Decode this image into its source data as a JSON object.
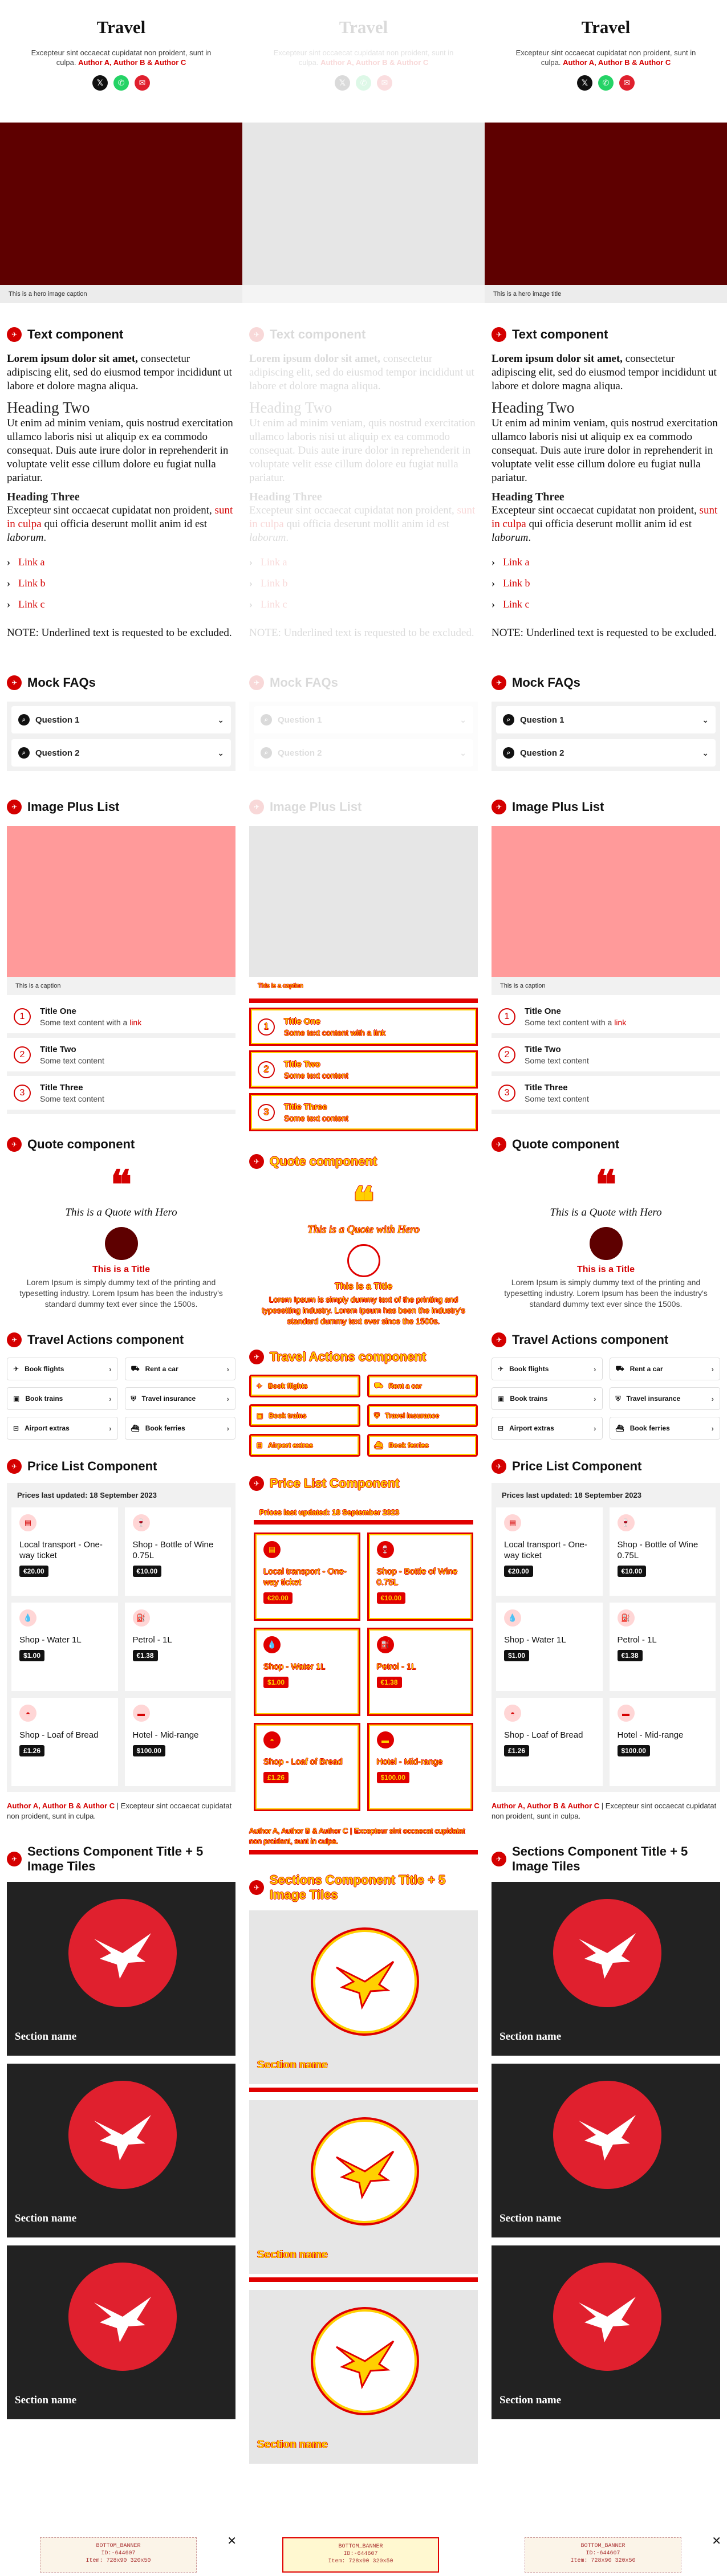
{
  "header": {
    "title": "Travel",
    "subtitle_text": "Excepteur sint occaecat cupidatat non proident, sunt in culpa.",
    "authors": "Author A, Author B & Author C",
    "share": [
      {
        "icon": "x-icon",
        "glyph": "𝕏"
      },
      {
        "icon": "whatsapp-icon",
        "glyph": "✆"
      },
      {
        "icon": "email-icon",
        "glyph": "✉"
      }
    ]
  },
  "hero": {
    "caption": "This is a hero image caption",
    "caption_alt": "This is a hero image title"
  },
  "text_component": {
    "title": "Text component",
    "lead_bold": "Lorem ipsum dolor sit amet,",
    "lead_rest": " consectetur adipiscing elit, sed do eiusmod tempor incididunt ut labore et dolore magna aliqua.",
    "h2": "Heading Two",
    "p2": "Ut enim ad minim veniam, quis nostrud exercitation ullamco laboris nisi ut aliquip ex ea commodo consequat. Duis aute irure dolor in reprehenderit in voluptate velit esse cillum dolore eu fugiat nulla pariatur.",
    "h3": "Heading Three",
    "p3_a": "Excepteur sint occaecat cupidatat non proident, ",
    "p3_link": "sunt in culpa",
    "p3_b": " qui officia deserunt mollit anim id est ",
    "p3_em": "laborum",
    "p3_end": ".",
    "links": [
      "Link a",
      "Link b",
      "Link c"
    ],
    "note": "NOTE: Underlined text is requested to be excluded."
  },
  "faqs": {
    "title": "Mock FAQs",
    "items": [
      "Question 1",
      "Question 2"
    ]
  },
  "image_plus_list": {
    "title": "Image Plus List",
    "caption": "This is a caption",
    "items": [
      {
        "num": "1",
        "title": "Title One",
        "text": "Some text content with a ",
        "link": "link"
      },
      {
        "num": "2",
        "title": "Title Two",
        "text": "Some text content",
        "link": ""
      },
      {
        "num": "3",
        "title": "Title Three",
        "text": "Some text content",
        "link": ""
      }
    ]
  },
  "quote": {
    "title": "Quote component",
    "mark": "❝",
    "text": "This is a Quote with Hero",
    "person_title": "This is a Title",
    "desc": "Lorem Ipsum is simply dummy text of the printing and typesetting industry. Lorem Ipsum has been the industry's standard dummy text ever since the 1500s."
  },
  "travel_actions": {
    "title": "Travel Actions component",
    "items": [
      {
        "label": "Book flights",
        "icon": "plane-icon",
        "glyph": "✈"
      },
      {
        "label": "Rent a car",
        "icon": "car-icon",
        "glyph": "⛟"
      },
      {
        "label": "Book trains",
        "icon": "train-icon",
        "glyph": "▣"
      },
      {
        "label": "Travel insurance",
        "icon": "shield-icon",
        "glyph": "⛨"
      },
      {
        "label": "Airport extras",
        "icon": "luggage-icon",
        "glyph": "⊟"
      },
      {
        "label": "Book ferries",
        "icon": "ferry-icon",
        "glyph": "⛴"
      }
    ]
  },
  "price_list": {
    "title": "Price List Component",
    "updated": "Prices last updated: 18 September 2023",
    "items": [
      {
        "name": "Local transport - One-way ticket",
        "price": "€20.00",
        "icon": "ticket-icon",
        "glyph": "▤"
      },
      {
        "name": "Shop - Bottle of Wine 0.75L",
        "price": "€10.00",
        "icon": "wine-icon",
        "glyph": "🍷"
      },
      {
        "name": "Shop - Water 1L",
        "price": "$1.00",
        "icon": "water-icon",
        "glyph": "💧"
      },
      {
        "name": "Petrol - 1L",
        "price": "€1.38",
        "icon": "fuel-icon",
        "glyph": "⛽"
      },
      {
        "name": "Shop - Loaf of Bread",
        "price": "£1.26",
        "icon": "bread-icon",
        "glyph": "◓"
      },
      {
        "name": "Hotel - Mid-range",
        "price": "$100.00",
        "icon": "bed-icon",
        "glyph": "▬"
      }
    ],
    "footer_authors": "Author A, Author B & Author C",
    "footer_text": " | Excepteur sint occaecat cupidatat non proident, sunt in culpa."
  },
  "sections": {
    "title": "Sections Component Title + 5 Image Tiles",
    "tiles": [
      "Section name",
      "Section name",
      "Section name"
    ]
  },
  "banner": {
    "line1": "BOTTOM_BANNER",
    "line2": "ID:-644607",
    "line3": "Item: 728x90 320x50",
    "close": "✕"
  },
  "colors": {
    "accent": "#d40000",
    "hero": "#5e0000",
    "pink": "#ff9a9a",
    "tile": "#222222"
  }
}
